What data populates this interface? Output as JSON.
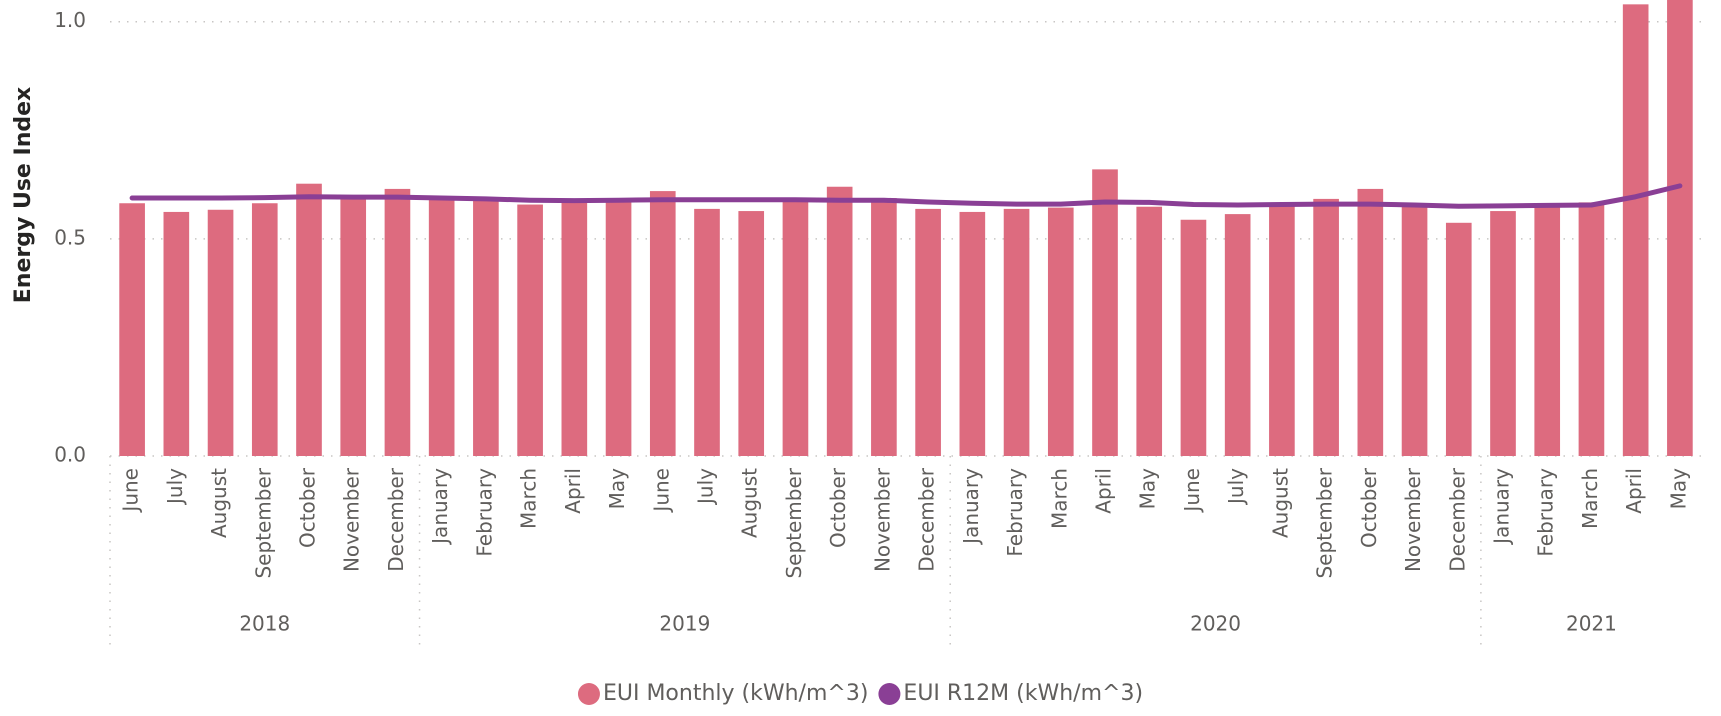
{
  "chart_data": {
    "type": "bar",
    "y_label": "Energy Use Index",
    "categories": [
      "June",
      "July",
      "August",
      "September",
      "October",
      "November",
      "December",
      "January",
      "February",
      "March",
      "April",
      "May",
      "June",
      "July",
      "August",
      "September",
      "October",
      "November",
      "December",
      "January",
      "February",
      "March",
      "April",
      "May",
      "June",
      "July",
      "August",
      "September",
      "October",
      "November",
      "December",
      "January",
      "February",
      "March",
      "April",
      "May"
    ],
    "year_groups": [
      {
        "label": "2018",
        "count": 7
      },
      {
        "label": "2019",
        "count": 12
      },
      {
        "label": "2020",
        "count": 12
      },
      {
        "label": "2021",
        "count": 5
      }
    ],
    "series": [
      {
        "name": "EUI Monthly (kWh/m^3)",
        "type": "bar",
        "color": "#dd6b7f",
        "values": [
          0.582,
          0.562,
          0.567,
          0.582,
          0.627,
          0.597,
          0.615,
          0.594,
          0.589,
          0.579,
          0.589,
          0.589,
          0.61,
          0.569,
          0.564,
          0.589,
          0.62,
          0.594,
          0.569,
          0.562,
          0.569,
          0.572,
          0.66,
          0.574,
          0.544,
          0.557,
          0.582,
          0.592,
          0.615,
          0.579,
          0.537,
          0.564,
          0.582,
          0.584,
          1.04,
          1.1
        ]
      },
      {
        "name": "EUI R12M (kWh/m^3)",
        "type": "line",
        "color": "#8a3f95",
        "values": [
          0.594,
          0.594,
          0.594,
          0.595,
          0.597,
          0.596,
          0.596,
          0.594,
          0.592,
          0.589,
          0.588,
          0.589,
          0.59,
          0.59,
          0.59,
          0.59,
          0.589,
          0.589,
          0.585,
          0.582,
          0.58,
          0.58,
          0.585,
          0.584,
          0.579,
          0.578,
          0.579,
          0.58,
          0.58,
          0.578,
          0.575,
          0.576,
          0.577,
          0.578,
          0.597,
          0.622
        ]
      }
    ],
    "ylim": [
      0,
      1.05
    ],
    "yticks": [
      {
        "value": 0,
        "label": "0.0"
      },
      0.5,
      {
        "value": 1,
        "label": "1.0"
      }
    ],
    "grid": true,
    "legend": "bottom"
  }
}
